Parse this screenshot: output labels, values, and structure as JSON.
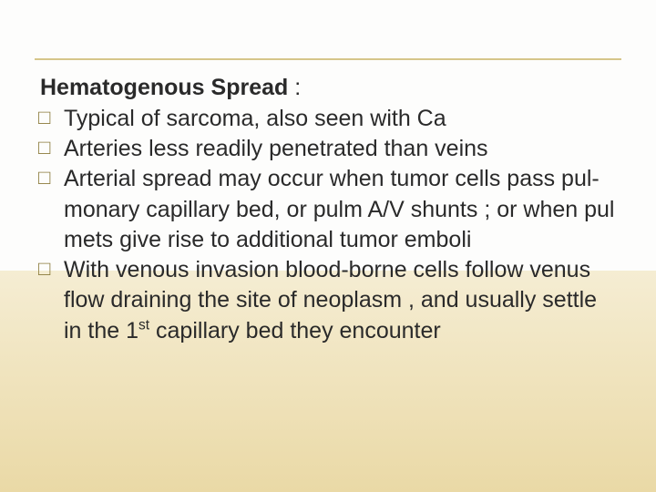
{
  "colors": {
    "divider": "#d6c68a",
    "text": "#2a2a2a",
    "marker": "#8a7a3a",
    "bg_top": "#fdfdfc",
    "bg_bottom_start": "#f5edd3",
    "bg_bottom_end": "#ead9a6"
  },
  "heading": {
    "text": "Hematogenous  Spread",
    "suffix": " :"
  },
  "bullet_marker": "□",
  "bullets": [
    {
      "html": "Typical of sarcoma, also seen with Ca"
    },
    {
      "html": "Arteries less readily penetrated than veins"
    },
    {
      "html": "Arterial spread may occur when tumor cells pass pul-monary capillary bed, or pulm A/V shunts ; or when pul mets give rise to additional  tumor emboli"
    },
    {
      "html": " With venous invasion blood-borne cells follow venus flow draining the site of neoplasm , and usually settle in the 1<sup>st</sup> capillary bed they encounter"
    }
  ]
}
